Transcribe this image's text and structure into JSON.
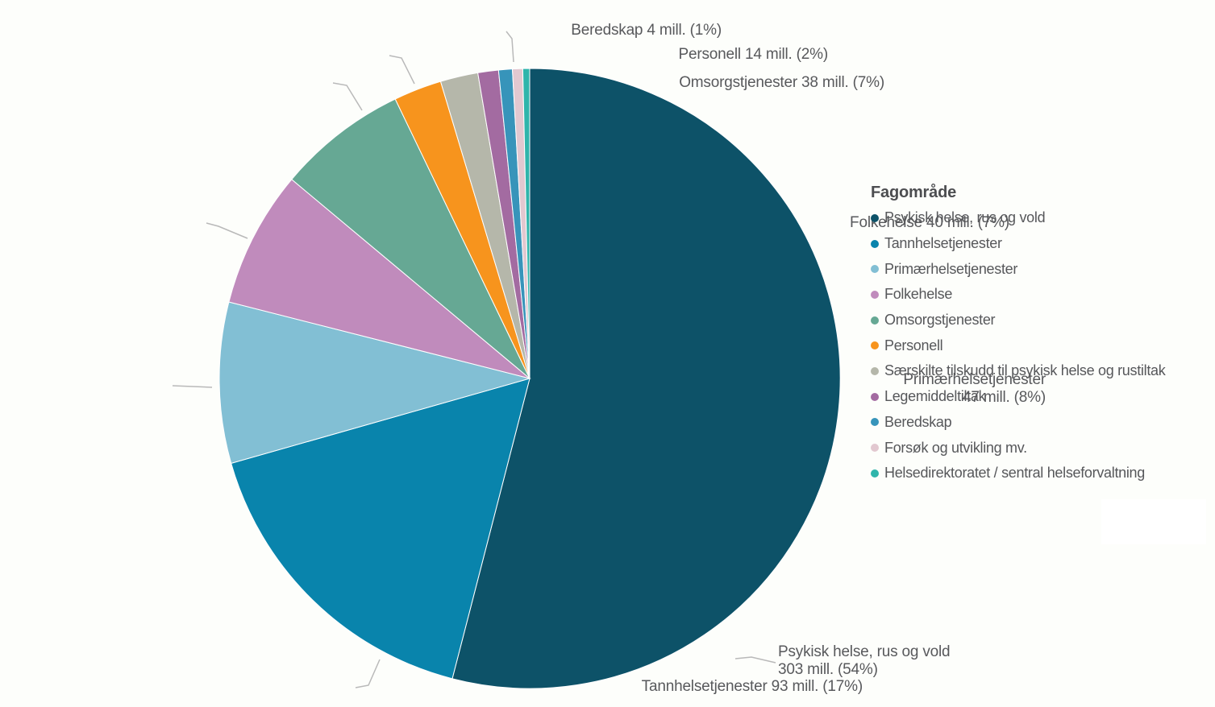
{
  "chart_data": {
    "type": "pie",
    "unit": "mill.",
    "legend": {
      "title": "Fagområde",
      "position": "right"
    },
    "slices": [
      {
        "name": "Psykisk helse, rus og vold",
        "value": 303,
        "percent_label": "54%",
        "color": "#0d5268",
        "callout_lines": [
          "Psykisk helse, rus og vold",
          "303 mill. (54%)"
        ]
      },
      {
        "name": "Tannhelsetjenester",
        "value": 93,
        "percent_label": "17%",
        "color": "#0984ac",
        "callout_lines": [
          "Tannhelsetjenester 93 mill. (17%)"
        ]
      },
      {
        "name": "Primærhelsetjenester",
        "value": 47,
        "percent_label": "8%",
        "color": "#82bfd4",
        "callout_lines": [
          "Primærhelsetjenester",
          "47 mill. (8%)"
        ]
      },
      {
        "name": "Folkehelse",
        "value": 40,
        "percent_label": "7%",
        "color": "#c08bbc",
        "callout_lines": [
          "Folkehelse 40 mill. (7%)"
        ]
      },
      {
        "name": "Omsorgstjenester",
        "value": 38,
        "percent_label": "7%",
        "color": "#66a894",
        "callout_lines": [
          "Omsorgstjenester 38 mill. (7%)"
        ]
      },
      {
        "name": "Personell",
        "value": 14,
        "percent_label": "2%",
        "color": "#f7941d",
        "callout_lines": [
          "Personell 14 mill. (2%)"
        ]
      },
      {
        "name": "Særskilte tilskudd til psykisk helse og rustiltak",
        "value": 11,
        "estimated": true,
        "color": "#b5b7aa"
      },
      {
        "name": "Legemiddeltiltak",
        "value": 6,
        "estimated": true,
        "color": "#a36ba1"
      },
      {
        "name": "Beredskap",
        "value": 4,
        "percent_label": "1%",
        "color": "#3794ba",
        "callout_lines": [
          "Beredskap 4 mill. (1%)"
        ]
      },
      {
        "name": "Forsøk og utvikling mv.",
        "value": 3,
        "estimated": true,
        "color": "#e2c8d0"
      },
      {
        "name": "Helsedirektoratet / sentral helseforvaltning",
        "value": 2,
        "estimated": true,
        "color": "#2fb5ab"
      }
    ]
  }
}
